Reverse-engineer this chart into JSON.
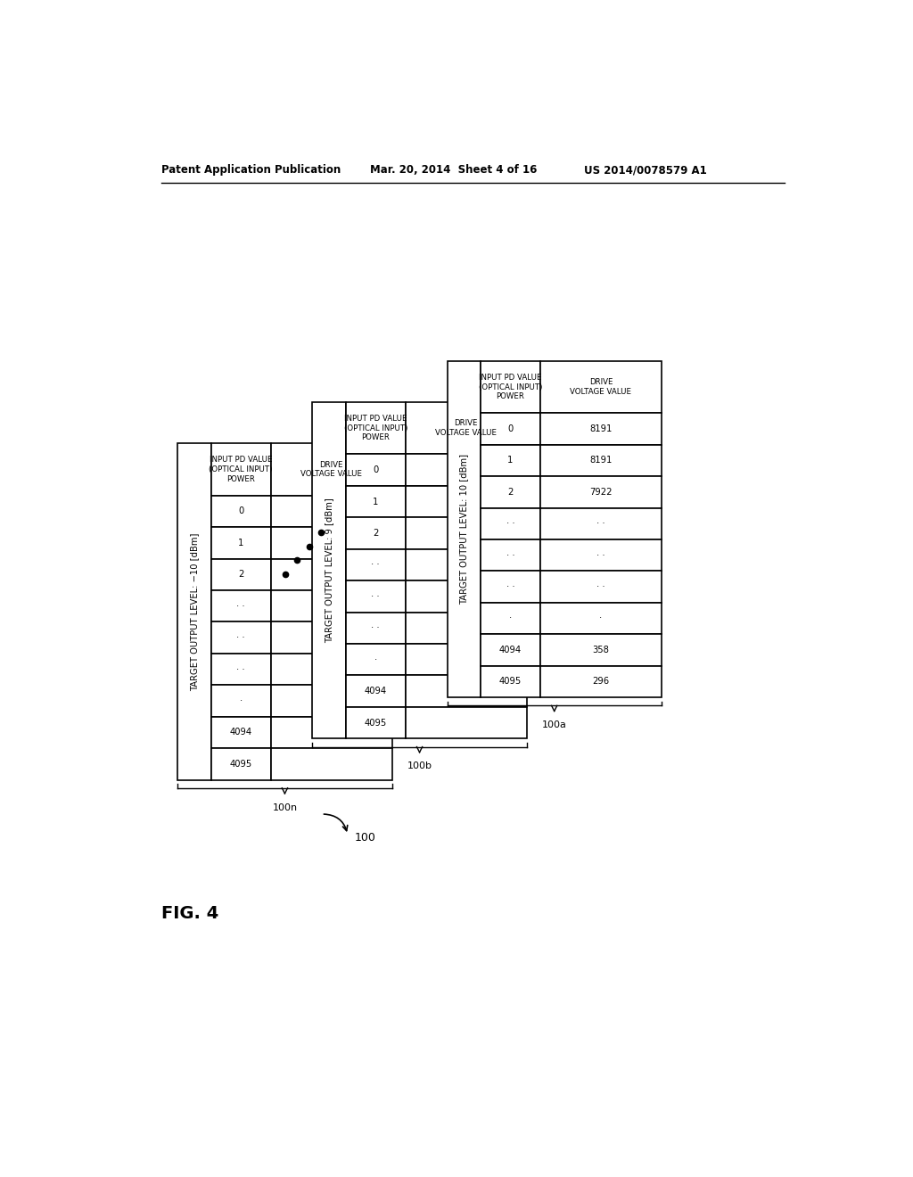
{
  "header_line1": "Patent Application Publication",
  "header_date": "Mar. 20, 2014  Sheet 4 of 16",
  "header_patent": "US 2014/0078579 A1",
  "fig_label": "FIG. 4",
  "tables": [
    {
      "title": "TARGET OUTPUT LEVEL: −10 [dBm]",
      "rows": [
        "0",
        "1",
        "2",
        "· ·",
        "· ·",
        "· ·",
        "·",
        "4094",
        "4095"
      ],
      "drive_values": [
        "",
        "",
        "",
        "",
        "",
        "",
        "",
        "",
        ""
      ]
    },
    {
      "title": "TARGET OUTPUT LEVEL: 9 [dBm]",
      "rows": [
        "0",
        "1",
        "2",
        "· ·",
        "· ·",
        "· ·",
        "·",
        "4094",
        "4095"
      ],
      "drive_values": [
        "",
        "",
        "",
        "",
        "",
        "",
        "",
        "",
        ""
      ]
    },
    {
      "title": "TARGET OUTPUT LEVEL: 10 [dBm]",
      "rows": [
        "0",
        "1",
        "2",
        "· ·",
        "· ·",
        "· ·",
        "·",
        "4094",
        "4095"
      ],
      "drive_values": [
        "8191",
        "8191",
        "7922",
        "· ·",
        "· ·",
        "· ·",
        "·",
        "358",
        "296"
      ]
    }
  ],
  "label_100n": "100n",
  "label_100b": "100b",
  "label_100a": "100a",
  "label_100": "100",
  "background_color": "#ffffff",
  "line_color": "#000000",
  "text_color": "#000000"
}
